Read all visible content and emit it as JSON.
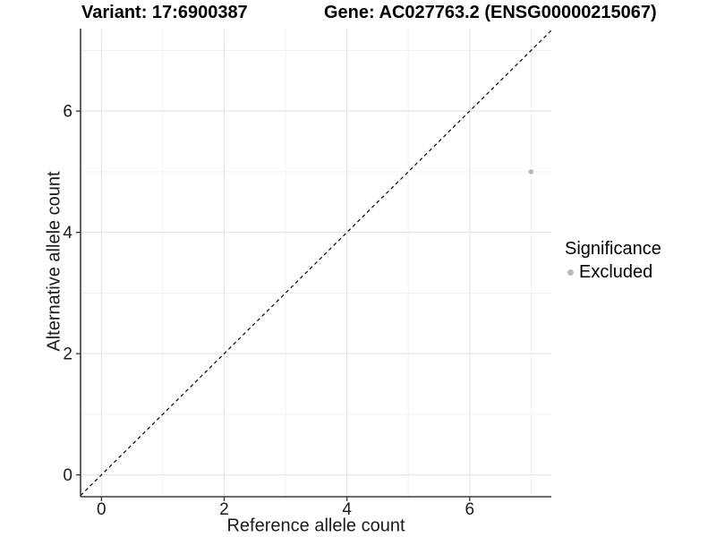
{
  "titles": {
    "variant": "Variant: 17:6900387",
    "gene": "Gene: AC027763.2 (ENSG00000215067)"
  },
  "x_axis": {
    "label": "Reference allele count",
    "tick_labels": [
      "0",
      "2",
      "4",
      "6"
    ]
  },
  "y_axis": {
    "label": "Alternative allele count",
    "tick_labels": [
      "0",
      "2",
      "4",
      "6"
    ]
  },
  "legend": {
    "title": "Significance",
    "items": [
      {
        "label": "Excluded",
        "color": "#b9b9b9",
        "marker": "circle-marker"
      }
    ]
  },
  "chart_data": {
    "type": "scatter",
    "title": "Variant: 17:6900387   Gene: AC027763.2 (ENSG00000215067)",
    "xlabel": "Reference allele count",
    "ylabel": "Alternative allele count",
    "xlim": [
      -0.34,
      7.33
    ],
    "ylim": [
      -0.36,
      7.36
    ],
    "x_major_ticks": [
      0,
      2,
      4,
      6
    ],
    "y_major_ticks": [
      0,
      2,
      4,
      6
    ],
    "x_minor_ticks": [
      1,
      3,
      5,
      7
    ],
    "y_minor_ticks": [
      1,
      3,
      5,
      7
    ],
    "grid": "on",
    "legend_position": "right",
    "series": [
      {
        "name": "Excluded",
        "color": "#b9b9b9",
        "marker": "circle",
        "points": [
          {
            "x": 7,
            "y": 5
          }
        ]
      }
    ],
    "reference_line": {
      "type": "identity",
      "equation": "y = x",
      "style": "dashed",
      "color": "#000000"
    }
  },
  "colors": {
    "background": "#ffffff",
    "grid_major": "#e7e7e7",
    "grid_minor": "#f1f1f1",
    "axis_line": "#3a3a3a",
    "tick_mark": "#333333",
    "tick_text": "#1a1a1a",
    "point": "#b9b9b9"
  }
}
